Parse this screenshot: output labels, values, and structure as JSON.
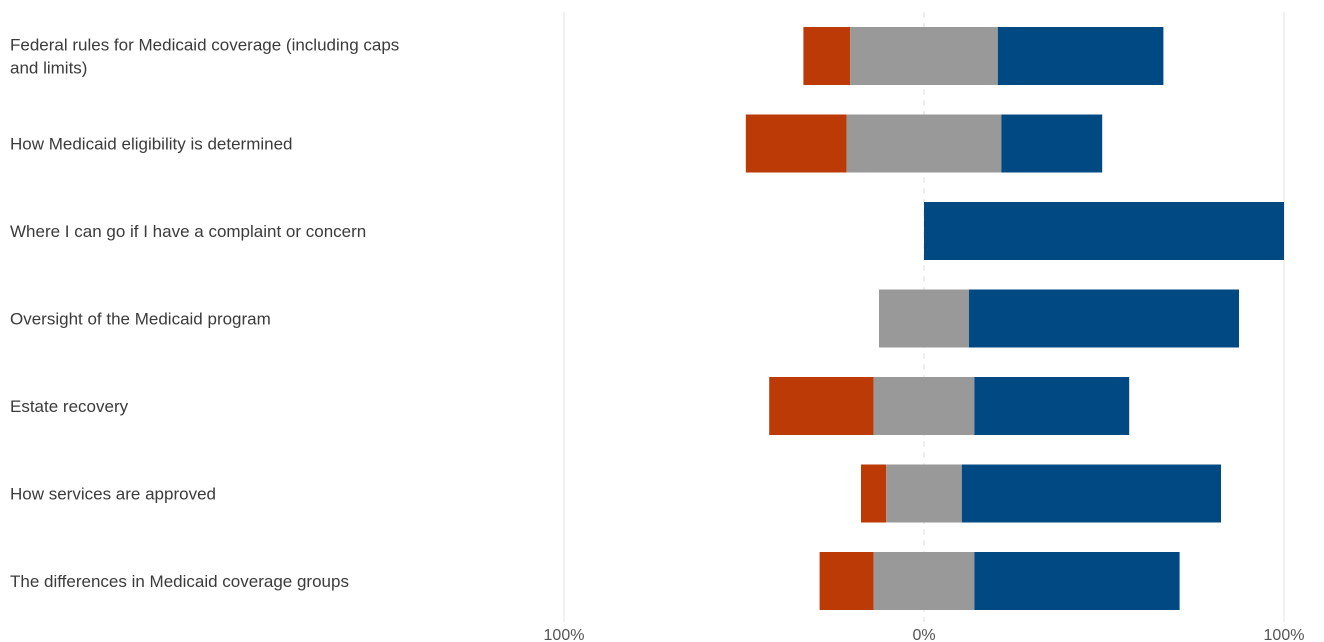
{
  "chart_data": {
    "type": "bar",
    "orientation": "horizontal",
    "stacking": "diverging",
    "categories": [
      [
        "Federal rules for Medicaid coverage (including caps",
        "and limits)"
      ],
      [
        "How Medicaid eligibility is determined"
      ],
      [
        "Where I can go if I have a complaint or concern"
      ],
      [
        "Oversight of the Medicaid program"
      ],
      [
        "Estate recovery"
      ],
      [
        "How services are approved"
      ],
      [
        "The differences in Medicaid coverage groups"
      ]
    ],
    "series": [
      {
        "color": "#bb3a06",
        "side": "negative",
        "values": [
          13,
          28,
          0,
          0,
          29,
          7,
          15
        ]
      },
      {
        "color": "#999999",
        "side": "neutral",
        "values": [
          41,
          43,
          0,
          25,
          28,
          21,
          28
        ]
      },
      {
        "color": "#004983",
        "side": "positive",
        "values": [
          46,
          28,
          100,
          75,
          43,
          72,
          57
        ]
      }
    ],
    "xlim": [
      -100,
      100
    ],
    "xticks": [
      {
        "value": -100,
        "label": "100%"
      },
      {
        "value": 0,
        "label": "0%"
      },
      {
        "value": 100,
        "label": "100%"
      }
    ],
    "grid": true,
    "title": "",
    "xlabel": "",
    "ylabel": ""
  }
}
